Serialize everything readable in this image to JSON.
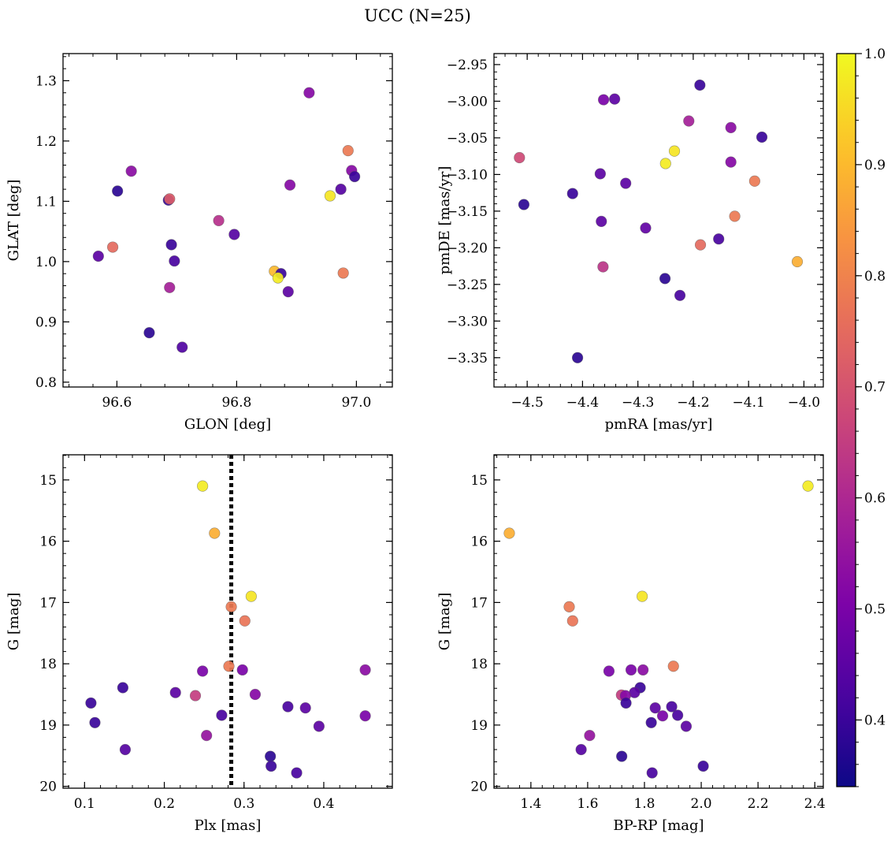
{
  "title": "UCC (N=25)",
  "colors": {
    "marker_edge": "#555555",
    "vline": "#000000",
    "colormap": "plasma"
  },
  "chart_data": [
    {
      "type": "scatter",
      "xlabel": "GLON [deg]",
      "ylabel": "GLAT [deg]",
      "xlim": [
        96.51,
        97.06
      ],
      "ylim": [
        0.792,
        1.345
      ],
      "xticks": [
        96.6,
        96.8,
        97.0
      ],
      "xtick_labels": [
        "96.6",
        "96.8",
        "97.0"
      ],
      "yticks": [
        0.8,
        0.9,
        1.0,
        1.1,
        1.2,
        1.3
      ],
      "ytick_labels": [
        "0.8",
        "0.9",
        "1.0",
        "1.1",
        "1.2",
        "1.3"
      ],
      "points": [
        {
          "x": 96.921,
          "y": 1.28,
          "c": 0.52
        },
        {
          "x": 96.624,
          "y": 1.15,
          "c": 0.53
        },
        {
          "x": 96.992,
          "y": 1.151,
          "c": 0.52
        },
        {
          "x": 96.997,
          "y": 1.141,
          "c": 0.4
        },
        {
          "x": 96.986,
          "y": 1.184,
          "c": 0.78
        },
        {
          "x": 96.601,
          "y": 1.117,
          "c": 0.38
        },
        {
          "x": 96.889,
          "y": 1.127,
          "c": 0.52
        },
        {
          "x": 96.974,
          "y": 1.12,
          "c": 0.44
        },
        {
          "x": 96.956,
          "y": 1.109,
          "c": 0.97
        },
        {
          "x": 96.686,
          "y": 1.102,
          "c": 0.4
        },
        {
          "x": 96.688,
          "y": 1.104,
          "c": 0.72
        },
        {
          "x": 96.77,
          "y": 1.068,
          "c": 0.62
        },
        {
          "x": 96.796,
          "y": 1.045,
          "c": 0.44
        },
        {
          "x": 96.593,
          "y": 1.024,
          "c": 0.75
        },
        {
          "x": 96.691,
          "y": 1.028,
          "c": 0.4
        },
        {
          "x": 96.569,
          "y": 1.009,
          "c": 0.45
        },
        {
          "x": 96.696,
          "y": 1.001,
          "c": 0.42
        },
        {
          "x": 96.863,
          "y": 0.984,
          "c": 0.9
        },
        {
          "x": 96.874,
          "y": 0.98,
          "c": 0.4
        },
        {
          "x": 96.869,
          "y": 0.973,
          "c": 0.98
        },
        {
          "x": 96.978,
          "y": 0.981,
          "c": 0.78
        },
        {
          "x": 96.688,
          "y": 0.957,
          "c": 0.58
        },
        {
          "x": 96.886,
          "y": 0.95,
          "c": 0.45
        },
        {
          "x": 96.654,
          "y": 0.882,
          "c": 0.38
        },
        {
          "x": 96.709,
          "y": 0.858,
          "c": 0.43
        }
      ]
    },
    {
      "type": "scatter",
      "xlabel": "pmRA [mas/yr]",
      "ylabel": "pmDE [mas/yr]",
      "xlim": [
        -4.56,
        -3.965
      ],
      "ylim": [
        -3.39,
        -2.935
      ],
      "xticks": [
        -4.5,
        -4.4,
        -4.3,
        -4.2,
        -4.1,
        -4.0
      ],
      "xtick_labels": [
        "−4.5",
        "−4.4",
        "−4.3",
        "−4.2",
        "−4.1",
        "−4.0"
      ],
      "yticks": [
        -3.35,
        -3.3,
        -3.25,
        -3.2,
        -3.15,
        -3.1,
        -3.05,
        -3.0,
        -2.95
      ],
      "ytick_labels": [
        "−3.35",
        "−3.30",
        "−3.25",
        "−3.20",
        "−3.15",
        "−3.10",
        "−3.05",
        "−3.00",
        "−2.95"
      ],
      "points": [
        {
          "x": -4.188,
          "y": -2.978,
          "c": 0.4
        },
        {
          "x": -4.362,
          "y": -2.998,
          "c": 0.5
        },
        {
          "x": -4.342,
          "y": -2.997,
          "c": 0.45
        },
        {
          "x": -4.208,
          "y": -3.027,
          "c": 0.58
        },
        {
          "x": -4.132,
          "y": -3.036,
          "c": 0.53
        },
        {
          "x": -4.076,
          "y": -3.049,
          "c": 0.4
        },
        {
          "x": -4.234,
          "y": -3.068,
          "c": 0.97
        },
        {
          "x": -4.514,
          "y": -3.077,
          "c": 0.68
        },
        {
          "x": -4.25,
          "y": -3.085,
          "c": 0.98
        },
        {
          "x": -4.132,
          "y": -3.083,
          "c": 0.52
        },
        {
          "x": -4.368,
          "y": -3.099,
          "c": 0.45
        },
        {
          "x": -4.089,
          "y": -3.109,
          "c": 0.78
        },
        {
          "x": -4.322,
          "y": -3.112,
          "c": 0.45
        },
        {
          "x": -4.418,
          "y": -3.126,
          "c": 0.4
        },
        {
          "x": -4.506,
          "y": -3.141,
          "c": 0.38
        },
        {
          "x": -4.125,
          "y": -3.157,
          "c": 0.78
        },
        {
          "x": -4.366,
          "y": -3.164,
          "c": 0.45
        },
        {
          "x": -4.286,
          "y": -3.173,
          "c": 0.46
        },
        {
          "x": -4.154,
          "y": -3.188,
          "c": 0.42
        },
        {
          "x": -4.187,
          "y": -3.196,
          "c": 0.75
        },
        {
          "x": -4.012,
          "y": -3.219,
          "c": 0.88
        },
        {
          "x": -4.363,
          "y": -3.226,
          "c": 0.63
        },
        {
          "x": -4.251,
          "y": -3.242,
          "c": 0.38
        },
        {
          "x": -4.224,
          "y": -3.265,
          "c": 0.42
        },
        {
          "x": -4.409,
          "y": -3.35,
          "c": 0.38
        }
      ]
    },
    {
      "type": "scatter",
      "xlabel": "Plx [mas]",
      "ylabel": "G [mag]",
      "xlim": [
        0.073,
        0.486
      ],
      "ylim": [
        20.03,
        14.59
      ],
      "y_inverted": true,
      "xticks": [
        0.1,
        0.2,
        0.3,
        0.4
      ],
      "xtick_labels": [
        "0.1",
        "0.2",
        "0.3",
        "0.4"
      ],
      "yticks": [
        15,
        16,
        17,
        18,
        19,
        20
      ],
      "ytick_labels": [
        "15",
        "16",
        "17",
        "18",
        "19",
        "20"
      ],
      "vline": {
        "x": 0.284,
        "style": "dotted"
      },
      "points": [
        {
          "x": 0.248,
          "y": 15.1,
          "c": 0.98
        },
        {
          "x": 0.263,
          "y": 15.87,
          "c": 0.88
        },
        {
          "x": 0.309,
          "y": 16.9,
          "c": 0.97
        },
        {
          "x": 0.284,
          "y": 17.07,
          "c": 0.78
        },
        {
          "x": 0.301,
          "y": 17.3,
          "c": 0.77
        },
        {
          "x": 0.281,
          "y": 18.04,
          "c": 0.78
        },
        {
          "x": 0.248,
          "y": 18.12,
          "c": 0.5
        },
        {
          "x": 0.298,
          "y": 18.1,
          "c": 0.5
        },
        {
          "x": 0.452,
          "y": 18.1,
          "c": 0.53
        },
        {
          "x": 0.148,
          "y": 18.39,
          "c": 0.4
        },
        {
          "x": 0.214,
          "y": 18.47,
          "c": 0.45
        },
        {
          "x": 0.239,
          "y": 18.52,
          "c": 0.65
        },
        {
          "x": 0.314,
          "y": 18.5,
          "c": 0.52
        },
        {
          "x": 0.108,
          "y": 18.64,
          "c": 0.4
        },
        {
          "x": 0.355,
          "y": 18.7,
          "c": 0.42
        },
        {
          "x": 0.377,
          "y": 18.72,
          "c": 0.45
        },
        {
          "x": 0.272,
          "y": 18.84,
          "c": 0.42
        },
        {
          "x": 0.452,
          "y": 18.85,
          "c": 0.5
        },
        {
          "x": 0.113,
          "y": 18.96,
          "c": 0.4
        },
        {
          "x": 0.394,
          "y": 19.02,
          "c": 0.45
        },
        {
          "x": 0.253,
          "y": 19.17,
          "c": 0.55
        },
        {
          "x": 0.151,
          "y": 19.4,
          "c": 0.44
        },
        {
          "x": 0.333,
          "y": 19.51,
          "c": 0.38
        },
        {
          "x": 0.334,
          "y": 19.67,
          "c": 0.4
        },
        {
          "x": 0.366,
          "y": 19.78,
          "c": 0.42
        }
      ]
    },
    {
      "type": "scatter",
      "xlabel": "BP-RP [mag]",
      "ylabel": "G [mag]",
      "xlim": [
        1.27,
        2.43
      ],
      "ylim": [
        20.03,
        14.59
      ],
      "y_inverted": true,
      "xticks": [
        1.4,
        1.6,
        1.8,
        2.0,
        2.2,
        2.4
      ],
      "xtick_labels": [
        "1.4",
        "1.6",
        "1.8",
        "2.0",
        "2.2",
        "2.4"
      ],
      "yticks": [
        15,
        16,
        17,
        18,
        19,
        20
      ],
      "ytick_labels": [
        "15",
        "16",
        "17",
        "18",
        "19",
        "20"
      ],
      "points": [
        {
          "x": 2.376,
          "y": 15.1,
          "c": 0.98
        },
        {
          "x": 1.324,
          "y": 15.87,
          "c": 0.88
        },
        {
          "x": 1.792,
          "y": 16.9,
          "c": 0.97
        },
        {
          "x": 1.535,
          "y": 17.07,
          "c": 0.78
        },
        {
          "x": 1.547,
          "y": 17.3,
          "c": 0.77
        },
        {
          "x": 1.902,
          "y": 18.04,
          "c": 0.78
        },
        {
          "x": 1.675,
          "y": 18.12,
          "c": 0.5
        },
        {
          "x": 1.753,
          "y": 18.1,
          "c": 0.5
        },
        {
          "x": 1.795,
          "y": 18.1,
          "c": 0.53
        },
        {
          "x": 1.785,
          "y": 18.39,
          "c": 0.4
        },
        {
          "x": 1.765,
          "y": 18.47,
          "c": 0.45
        },
        {
          "x": 1.719,
          "y": 18.51,
          "c": 0.65
        },
        {
          "x": 1.733,
          "y": 18.52,
          "c": 0.52
        },
        {
          "x": 1.735,
          "y": 18.64,
          "c": 0.4
        },
        {
          "x": 1.896,
          "y": 18.7,
          "c": 0.42
        },
        {
          "x": 1.838,
          "y": 18.72,
          "c": 0.45
        },
        {
          "x": 1.917,
          "y": 18.84,
          "c": 0.42
        },
        {
          "x": 1.864,
          "y": 18.85,
          "c": 0.5
        },
        {
          "x": 1.824,
          "y": 18.96,
          "c": 0.4
        },
        {
          "x": 1.947,
          "y": 19.02,
          "c": 0.45
        },
        {
          "x": 1.607,
          "y": 19.17,
          "c": 0.55
        },
        {
          "x": 1.577,
          "y": 19.4,
          "c": 0.44
        },
        {
          "x": 1.72,
          "y": 19.51,
          "c": 0.38
        },
        {
          "x": 2.007,
          "y": 19.67,
          "c": 0.4
        },
        {
          "x": 1.827,
          "y": 19.78,
          "c": 0.42
        }
      ]
    }
  ],
  "colorbar": {
    "range": [
      0.34,
      1.0
    ],
    "ticks": [
      0.4,
      0.5,
      0.6,
      0.7,
      0.8,
      0.9,
      1.0
    ],
    "tick_labels": [
      "0.4",
      "0.5",
      "0.6",
      "0.7",
      "0.8",
      "0.9",
      "1.0"
    ]
  }
}
